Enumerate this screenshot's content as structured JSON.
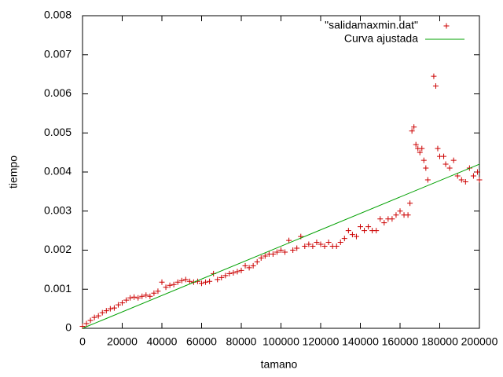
{
  "chart_data": {
    "type": "scatter",
    "xlabel": "tamano",
    "ylabel": "tiempo",
    "xlim": [
      0,
      200000
    ],
    "xticks": [
      0,
      20000,
      40000,
      60000,
      80000,
      100000,
      120000,
      140000,
      160000,
      180000,
      200000
    ],
    "ylim": [
      0,
      0.008
    ],
    "yticks": [
      0,
      0.001,
      0.002,
      0.003,
      0.004,
      0.005,
      0.006,
      0.007,
      0.008
    ],
    "legend": "top-right",
    "series": [
      {
        "name": "\"salidamaxmin.dat\"",
        "color": "#cc0000",
        "mode": "points",
        "x": [
          0,
          2000,
          4000,
          6000,
          8000,
          10000,
          12000,
          14000,
          16000,
          18000,
          20000,
          22000,
          24000,
          26000,
          28000,
          30000,
          32000,
          34000,
          36000,
          38000,
          40000,
          42000,
          44000,
          46000,
          48000,
          50000,
          52000,
          54000,
          56000,
          58000,
          60000,
          62000,
          64000,
          66000,
          68000,
          70000,
          72000,
          74000,
          76000,
          78000,
          80000,
          82000,
          84000,
          86000,
          88000,
          90000,
          92000,
          94000,
          96000,
          98000,
          100000,
          102000,
          104000,
          106000,
          108000,
          110000,
          112000,
          114000,
          116000,
          118000,
          120000,
          122000,
          124000,
          126000,
          128000,
          130000,
          132000,
          134000,
          136000,
          138000,
          140000,
          142000,
          144000,
          146000,
          148000,
          150000,
          152000,
          154000,
          156000,
          158000,
          160000,
          162000,
          164000,
          165000,
          166000,
          167000,
          168000,
          169000,
          170000,
          171000,
          172000,
          173000,
          174000,
          177000,
          178000,
          179000,
          180000,
          182000,
          183000,
          185000,
          187000,
          189000,
          191000,
          193000,
          195000,
          197000,
          199000,
          200000
        ],
        "values": [
          5e-05,
          0.00012,
          0.0002,
          0.00028,
          0.00032,
          0.0004,
          0.00045,
          0.0005,
          0.00052,
          0.0006,
          0.00065,
          0.00072,
          0.00078,
          0.0008,
          0.00078,
          0.00082,
          0.00085,
          0.00082,
          0.0009,
          0.00095,
          0.00118,
          0.00105,
          0.0011,
          0.00112,
          0.00118,
          0.00122,
          0.00125,
          0.0012,
          0.00118,
          0.0012,
          0.00115,
          0.00118,
          0.0012,
          0.0014,
          0.00125,
          0.0013,
          0.00135,
          0.0014,
          0.00142,
          0.00145,
          0.00148,
          0.0016,
          0.00155,
          0.0016,
          0.0017,
          0.0018,
          0.00185,
          0.0019,
          0.0019,
          0.00195,
          0.002,
          0.00195,
          0.00225,
          0.002,
          0.00205,
          0.00235,
          0.0021,
          0.00215,
          0.0021,
          0.0022,
          0.00215,
          0.0021,
          0.0022,
          0.0021,
          0.0021,
          0.0022,
          0.0023,
          0.0025,
          0.0024,
          0.00235,
          0.0026,
          0.0025,
          0.0026,
          0.0025,
          0.0025,
          0.0028,
          0.0027,
          0.0028,
          0.0028,
          0.0029,
          0.003,
          0.0029,
          0.0029,
          0.0032,
          0.00505,
          0.00515,
          0.0047,
          0.0046,
          0.0045,
          0.0046,
          0.0043,
          0.0041,
          0.0038,
          0.00645,
          0.0062,
          0.0046,
          0.0044,
          0.0044,
          0.0042,
          0.0041,
          0.0043,
          0.0039,
          0.0038,
          0.00375,
          0.0041,
          0.0039,
          0.004,
          0.0038
        ]
      },
      {
        "name": "Curva ajustada",
        "color": "#00a000",
        "mode": "line",
        "x": [
          0,
          200000
        ],
        "values": [
          0,
          0.0042
        ]
      }
    ]
  }
}
